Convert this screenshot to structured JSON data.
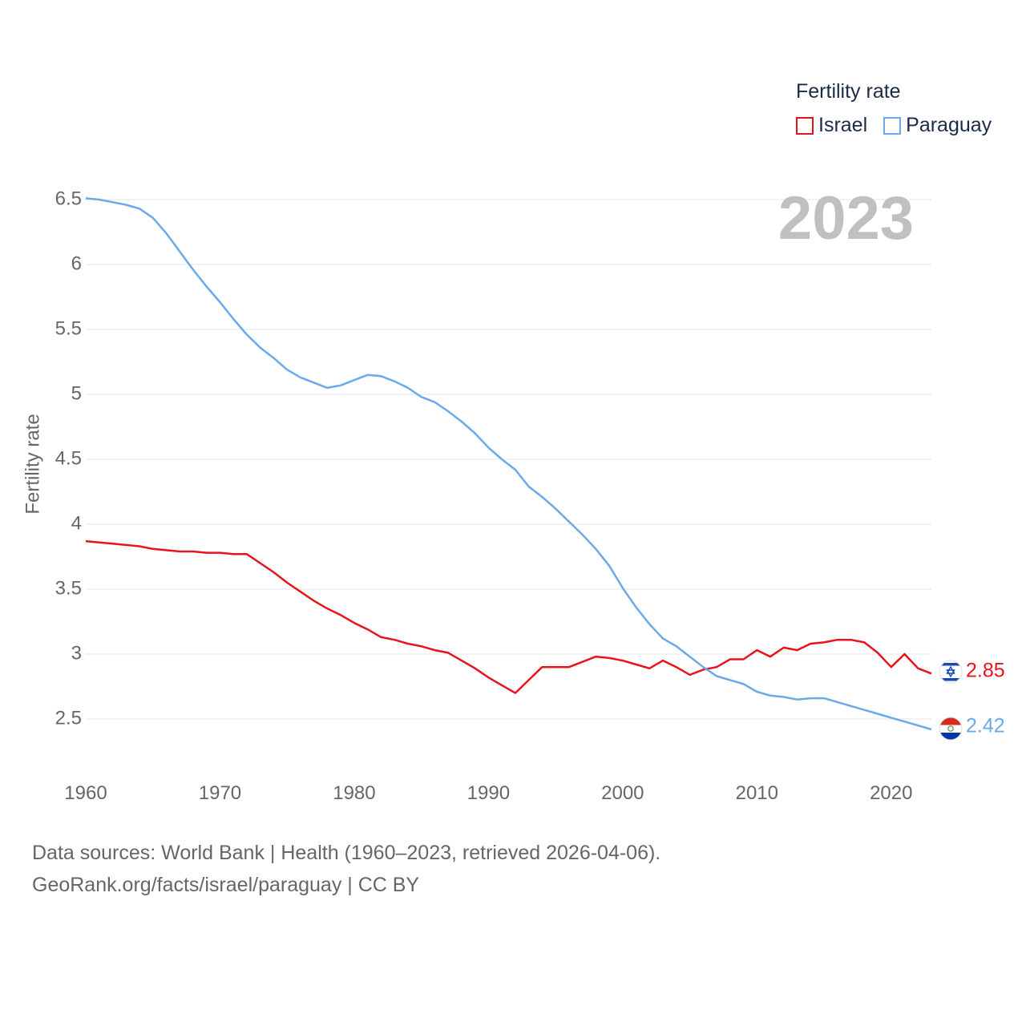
{
  "chart_data": {
    "type": "line",
    "title": "Fertility rate",
    "ylabel": "Fertility rate",
    "xlabel": "",
    "year_label": "2023",
    "xlim": [
      1960,
      2023
    ],
    "ylim": [
      2.2,
      6.65
    ],
    "x_ticks": [
      1960,
      1970,
      1980,
      1990,
      2000,
      2010,
      2020
    ],
    "y_ticks": [
      2.5,
      3,
      3.5,
      4,
      4.5,
      5,
      5.5,
      6,
      6.5
    ],
    "y_tick_labels": [
      "2.5",
      "3",
      "3.5",
      "4",
      "4.5",
      "5",
      "5.5",
      "6",
      "6.5"
    ],
    "legend_position": "top-right",
    "x": [
      1960,
      1961,
      1962,
      1963,
      1964,
      1965,
      1966,
      1967,
      1968,
      1969,
      1970,
      1971,
      1972,
      1973,
      1974,
      1975,
      1976,
      1977,
      1978,
      1979,
      1980,
      1981,
      1982,
      1983,
      1984,
      1985,
      1986,
      1987,
      1988,
      1989,
      1990,
      1991,
      1992,
      1993,
      1994,
      1995,
      1996,
      1997,
      1998,
      1999,
      2000,
      2001,
      2002,
      2003,
      2004,
      2005,
      2006,
      2007,
      2008,
      2009,
      2010,
      2011,
      2012,
      2013,
      2014,
      2015,
      2016,
      2017,
      2018,
      2019,
      2020,
      2021,
      2022,
      2023
    ],
    "series": [
      {
        "name": "Israel",
        "color": "#e8141c",
        "flag": "israel-flag",
        "end_label": "2.85",
        "values": [
          3.87,
          3.86,
          3.85,
          3.84,
          3.83,
          3.81,
          3.8,
          3.79,
          3.79,
          3.78,
          3.78,
          3.77,
          3.77,
          3.7,
          3.63,
          3.55,
          3.48,
          3.41,
          3.35,
          3.3,
          3.24,
          3.19,
          3.13,
          3.11,
          3.08,
          3.06,
          3.03,
          3.01,
          2.95,
          2.89,
          2.82,
          2.76,
          2.7,
          2.8,
          2.9,
          2.9,
          2.9,
          2.94,
          2.98,
          2.97,
          2.95,
          2.92,
          2.89,
          2.95,
          2.9,
          2.84,
          2.88,
          2.9,
          2.96,
          2.96,
          3.03,
          2.98,
          3.05,
          3.03,
          3.08,
          3.09,
          3.11,
          3.11,
          3.09,
          3.01,
          2.9,
          3.0,
          2.89,
          2.85
        ]
      },
      {
        "name": "Paraguay",
        "color": "#6aaae8",
        "flag": "paraguay-flag",
        "end_label": "2.42",
        "values": [
          6.51,
          6.5,
          6.48,
          6.46,
          6.43,
          6.36,
          6.24,
          6.1,
          5.96,
          5.83,
          5.71,
          5.58,
          5.46,
          5.36,
          5.28,
          5.19,
          5.13,
          5.09,
          5.05,
          5.07,
          5.11,
          5.15,
          5.14,
          5.1,
          5.05,
          4.98,
          4.94,
          4.87,
          4.79,
          4.7,
          4.59,
          4.5,
          4.42,
          4.29,
          4.21,
          4.12,
          4.02,
          3.92,
          3.81,
          3.68,
          3.51,
          3.36,
          3.23,
          3.12,
          3.06,
          2.98,
          2.9,
          2.83,
          2.8,
          2.77,
          2.71,
          2.68,
          2.67,
          2.65,
          2.66,
          2.66,
          2.63,
          2.6,
          2.57,
          2.54,
          2.51,
          2.48,
          2.45,
          2.42
        ]
      }
    ]
  },
  "legend": {
    "title": "Fertility rate",
    "items": [
      {
        "label": "Israel",
        "color": "#e8141c"
      },
      {
        "label": "Paraguay",
        "color": "#6aaae8"
      }
    ]
  },
  "footer": {
    "sources": "Data sources: World Bank | Health (1960–2023, retrieved 2026-04-06).",
    "attribution": "GeoRank.org/facts/israel/paraguay | CC BY"
  }
}
